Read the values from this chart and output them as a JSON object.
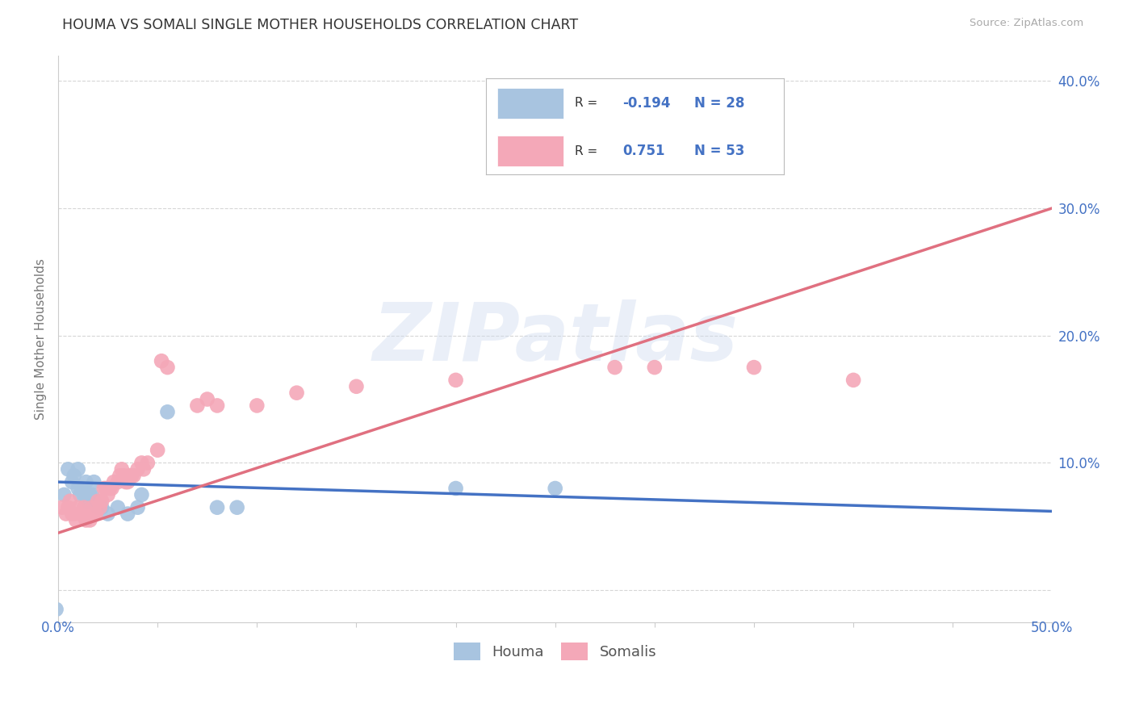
{
  "title": "HOUMA VS SOMALI SINGLE MOTHER HOUSEHOLDS CORRELATION CHART",
  "source": "Source: ZipAtlas.com",
  "ylabel": "Single Mother Households",
  "xlim": [
    0.0,
    0.5
  ],
  "ylim": [
    -0.025,
    0.42
  ],
  "ytick_vals": [
    0.0,
    0.1,
    0.2,
    0.3,
    0.4
  ],
  "ytick_labels": [
    "",
    "10.0%",
    "20.0%",
    "30.0%",
    "40.0%"
  ],
  "houma_R": "-0.194",
  "houma_N": "28",
  "somali_R": "0.751",
  "somali_N": "53",
  "houma_color": "#a8c4e0",
  "somali_color": "#f4a8b8",
  "houma_line_color": "#4472c4",
  "somali_line_color": "#e07080",
  "watermark_text": "ZIPatlas",
  "houma_points": [
    [
      0.003,
      0.075
    ],
    [
      0.005,
      0.095
    ],
    [
      0.007,
      0.085
    ],
    [
      0.008,
      0.09
    ],
    [
      0.01,
      0.08
    ],
    [
      0.01,
      0.095
    ],
    [
      0.011,
      0.075
    ],
    [
      0.012,
      0.08
    ],
    [
      0.013,
      0.075
    ],
    [
      0.014,
      0.085
    ],
    [
      0.015,
      0.07
    ],
    [
      0.016,
      0.075
    ],
    [
      0.017,
      0.075
    ],
    [
      0.018,
      0.07
    ],
    [
      0.018,
      0.085
    ],
    [
      0.02,
      0.065
    ],
    [
      0.022,
      0.065
    ],
    [
      0.025,
      0.06
    ],
    [
      0.03,
      0.065
    ],
    [
      0.035,
      0.06
    ],
    [
      0.04,
      0.065
    ],
    [
      0.042,
      0.075
    ],
    [
      0.055,
      0.14
    ],
    [
      0.08,
      0.065
    ],
    [
      0.09,
      0.065
    ],
    [
      0.2,
      0.08
    ],
    [
      0.25,
      0.08
    ],
    [
      -0.001,
      -0.015
    ]
  ],
  "somali_points": [
    [
      0.002,
      0.065
    ],
    [
      0.004,
      0.06
    ],
    [
      0.005,
      0.065
    ],
    [
      0.006,
      0.07
    ],
    [
      0.007,
      0.06
    ],
    [
      0.008,
      0.06
    ],
    [
      0.009,
      0.055
    ],
    [
      0.01,
      0.065
    ],
    [
      0.011,
      0.06
    ],
    [
      0.012,
      0.06
    ],
    [
      0.013,
      0.065
    ],
    [
      0.014,
      0.055
    ],
    [
      0.015,
      0.06
    ],
    [
      0.016,
      0.055
    ],
    [
      0.017,
      0.065
    ],
    [
      0.018,
      0.06
    ],
    [
      0.019,
      0.06
    ],
    [
      0.02,
      0.07
    ],
    [
      0.021,
      0.065
    ],
    [
      0.022,
      0.07
    ],
    [
      0.023,
      0.08
    ],
    [
      0.024,
      0.08
    ],
    [
      0.025,
      0.075
    ],
    [
      0.026,
      0.08
    ],
    [
      0.027,
      0.08
    ],
    [
      0.028,
      0.085
    ],
    [
      0.03,
      0.085
    ],
    [
      0.031,
      0.09
    ],
    [
      0.032,
      0.095
    ],
    [
      0.033,
      0.09
    ],
    [
      0.034,
      0.085
    ],
    [
      0.035,
      0.085
    ],
    [
      0.036,
      0.09
    ],
    [
      0.037,
      0.09
    ],
    [
      0.038,
      0.09
    ],
    [
      0.04,
      0.095
    ],
    [
      0.042,
      0.1
    ],
    [
      0.043,
      0.095
    ],
    [
      0.045,
      0.1
    ],
    [
      0.05,
      0.11
    ],
    [
      0.052,
      0.18
    ],
    [
      0.055,
      0.175
    ],
    [
      0.07,
      0.145
    ],
    [
      0.075,
      0.15
    ],
    [
      0.08,
      0.145
    ],
    [
      0.1,
      0.145
    ],
    [
      0.12,
      0.155
    ],
    [
      0.15,
      0.16
    ],
    [
      0.2,
      0.165
    ],
    [
      0.28,
      0.175
    ],
    [
      0.3,
      0.175
    ],
    [
      0.35,
      0.175
    ],
    [
      0.4,
      0.165
    ]
  ],
  "background_color": "#ffffff",
  "grid_color": "#cccccc"
}
